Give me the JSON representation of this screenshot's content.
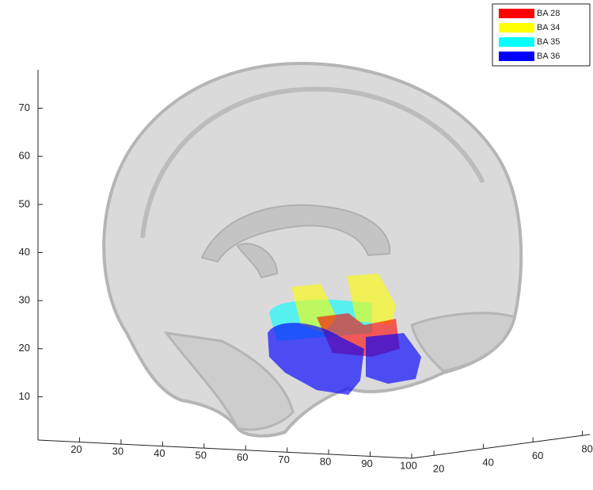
{
  "chart_data": {
    "type": "volume3d",
    "series": [
      {
        "name": "BA 28",
        "color": "#ff0000"
      },
      {
        "name": "BA 34",
        "color": "#ffff00"
      },
      {
        "name": "BA 35",
        "color": "#00ffff"
      },
      {
        "name": "BA 36",
        "color": "#0000ff"
      }
    ],
    "xlim": [
      10,
      100
    ],
    "xticks": [
      20,
      30,
      40,
      50,
      60,
      70,
      80,
      90,
      100
    ],
    "ylim": [
      11,
      83
    ],
    "yticks": [
      20,
      40,
      60,
      80
    ],
    "zlim": [
      1,
      78
    ],
    "zticks": [
      10,
      20,
      30,
      40,
      50,
      60,
      70
    ],
    "legend": "top-right"
  }
}
